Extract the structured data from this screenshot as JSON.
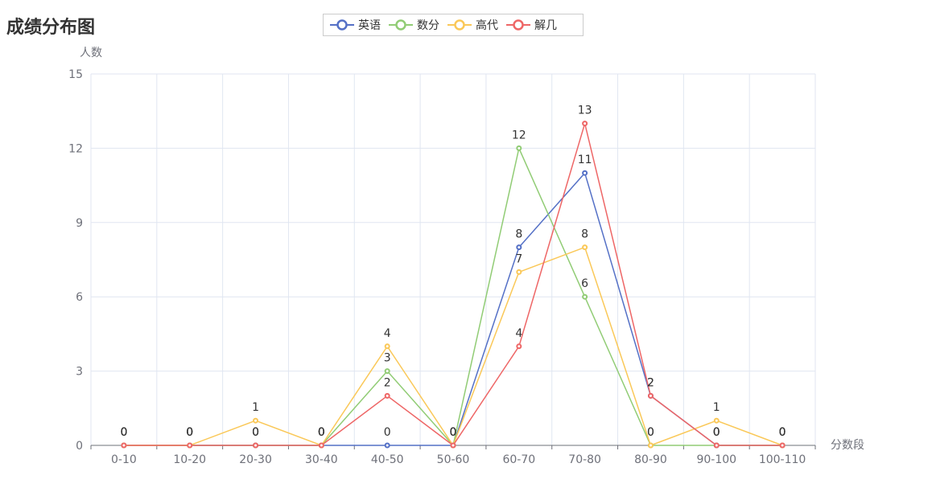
{
  "page": {
    "title": "成绩分布图"
  },
  "chart_data": {
    "type": "line",
    "title": "成绩分布图",
    "xlabel": "分数段",
    "ylabel": "人数",
    "categories": [
      "0-10",
      "10-20",
      "20-30",
      "30-40",
      "40-50",
      "50-60",
      "60-70",
      "70-80",
      "80-90",
      "90-100",
      "100-110"
    ],
    "yticks": [
      0,
      3,
      6,
      9,
      12,
      15
    ],
    "ylim": [
      0,
      15
    ],
    "grid": true,
    "legend_position": "top-center",
    "series": [
      {
        "name": "英语",
        "color": "#5470c6",
        "values": [
          0,
          0,
          0,
          0,
          0,
          0,
          8,
          11,
          2,
          0,
          0
        ]
      },
      {
        "name": "数分",
        "color": "#91cc75",
        "values": [
          0,
          0,
          0,
          0,
          3,
          0,
          12,
          6,
          0,
          0,
          0
        ]
      },
      {
        "name": "高代",
        "color": "#fac858",
        "values": [
          0,
          0,
          1,
          0,
          4,
          0,
          7,
          8,
          0,
          1,
          0
        ]
      },
      {
        "name": "解几",
        "color": "#ee6666",
        "values": [
          0,
          0,
          0,
          0,
          2,
          0,
          4,
          13,
          2,
          0,
          0
        ]
      }
    ]
  }
}
